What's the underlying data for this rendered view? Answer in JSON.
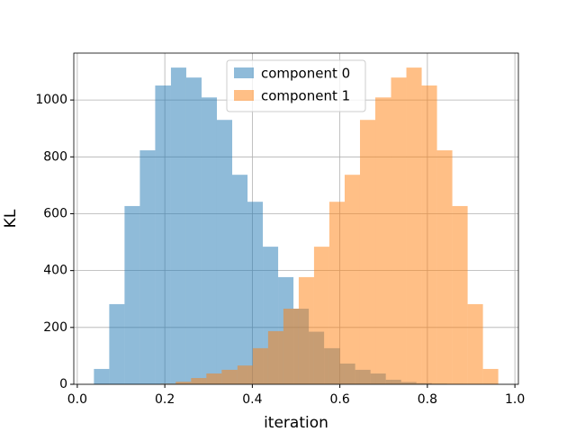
{
  "chart_data": {
    "type": "histogram",
    "xlabel": "iteration",
    "ylabel": "KL",
    "xlim": [
      -0.008,
      1.008
    ],
    "ylim": [
      0,
      1165
    ],
    "xticks": [
      {
        "value": 0,
        "label": "0.0"
      },
      0.2,
      0.4,
      0.6,
      0.8,
      {
        "value": 1,
        "label": "1.0"
      }
    ],
    "yticks": [
      0,
      200,
      400,
      600,
      800,
      1000
    ],
    "grid": true,
    "legend": "upper center",
    "alpha": 0.5,
    "series": [
      {
        "name": "component 0",
        "color": "#1f77b4",
        "bins": [
          0.038,
          0.073,
          0.108,
          0.143,
          0.178,
          0.214,
          0.249,
          0.284,
          0.319,
          0.354,
          0.389,
          0.424,
          0.459,
          0.494,
          0.529,
          0.564,
          0.6,
          0.635,
          0.67,
          0.705,
          0.74,
          0.775,
          0.81,
          0.845,
          0.88
        ],
        "values": [
          54,
          282,
          627,
          823,
          1051,
          1114,
          1079,
          1009,
          930,
          737,
          642,
          484,
          377,
          266,
          185,
          127,
          73,
          51,
          38,
          16,
          8,
          4,
          2,
          1
        ]
      },
      {
        "name": "component 1",
        "color": "#ff7f0e",
        "bins": [
          0.19,
          0.225,
          0.26,
          0.295,
          0.33,
          0.366,
          0.401,
          0.436,
          0.471,
          0.506,
          0.541,
          0.576,
          0.611,
          0.646,
          0.681,
          0.717,
          0.752,
          0.787,
          0.822,
          0.857,
          0.892,
          0.927,
          0.962
        ],
        "values": [
          2,
          9,
          22,
          38,
          51,
          66,
          127,
          187,
          266,
          377,
          484,
          642,
          737,
          930,
          1009,
          1079,
          1114,
          1051,
          823,
          627,
          282,
          54
        ]
      }
    ]
  }
}
